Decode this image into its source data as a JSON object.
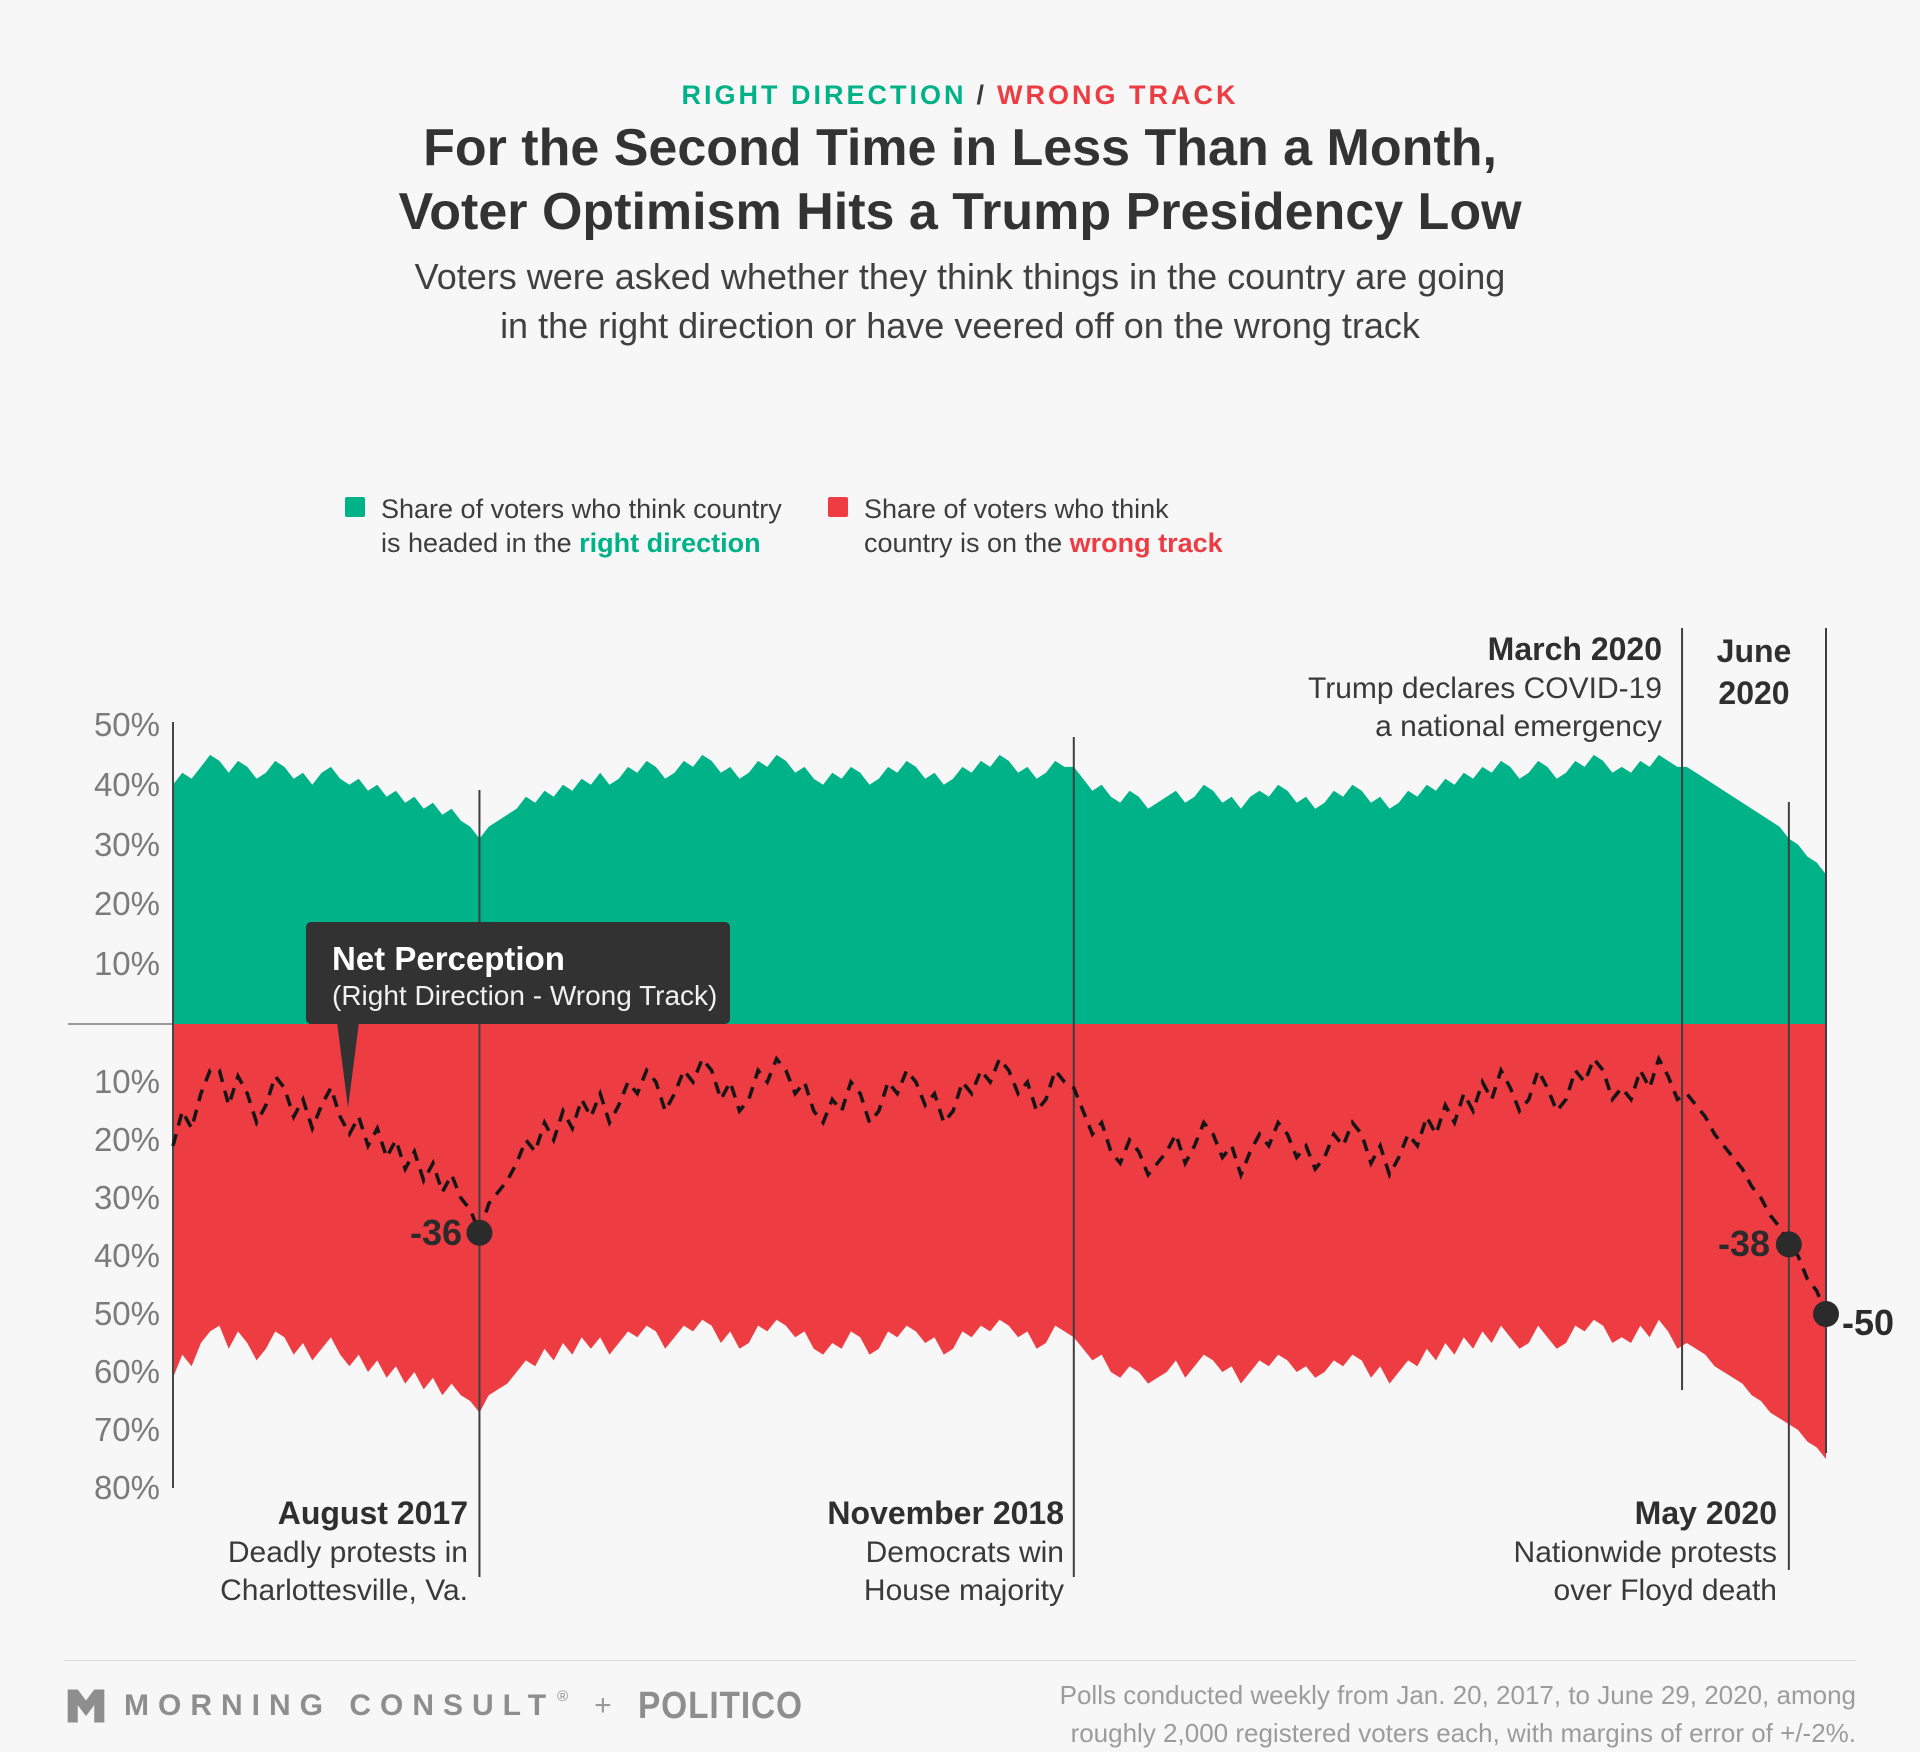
{
  "eyebrow": {
    "left": "RIGHT DIRECTION",
    "sep": "/",
    "right": "WRONG TRACK"
  },
  "title": {
    "line1": "For the Second Time in Less Than a Month,",
    "line2": "Voter Optimism Hits a Trump Presidency Low"
  },
  "subtitle": {
    "line1": "Voters were asked whether they think things in the country are going",
    "line2": "in the right direction or have veered off on the wrong track"
  },
  "legend": {
    "right": {
      "line1": "Share of voters who think country",
      "line2_prefix": "is headed in the ",
      "line2_bold": "right direction"
    },
    "wrong": {
      "line1": "Share of voters who think",
      "line2_prefix": "country is on the ",
      "line2_bold": "wrong track"
    }
  },
  "tooltip": {
    "title": "Net Perception",
    "subtitle": "(Right Direction - Wrong Track)"
  },
  "colors": {
    "green": "#00b287",
    "red": "#ed3c42",
    "dark": "#323232",
    "axis_gray": "#7b7b7b",
    "line_dark": "#3f3f3f",
    "dashed": "#161616"
  },
  "y_axis": {
    "top_ticks": [
      "50%",
      "40%",
      "30%",
      "20%",
      "10%"
    ],
    "bottom_ticks": [
      "10%",
      "20%",
      "30%",
      "40%",
      "50%",
      "60%",
      "70%",
      "80%"
    ]
  },
  "chart_data": {
    "type": "area",
    "title": "Right direction vs. wrong track, weekly",
    "x_unit": "week",
    "x_start_label": "Jan. 20, 2017",
    "x_end_label": "June 29, 2020",
    "ylim": [
      -80,
      50
    ],
    "grid": "event-lines-only",
    "series": [
      {
        "name": "right_direction",
        "color": "#00b287",
        "values": [
          40,
          42,
          41,
          43,
          45,
          44,
          42,
          44,
          43,
          41,
          42,
          44,
          43,
          41,
          42,
          40,
          42,
          43,
          41,
          40,
          41,
          39,
          40,
          38,
          39,
          37,
          38,
          36,
          37,
          35,
          36,
          34,
          33,
          31,
          33,
          34,
          35,
          36,
          38,
          37,
          39,
          38,
          40,
          39,
          41,
          40,
          42,
          40,
          41,
          43,
          42,
          44,
          43,
          41,
          42,
          44,
          43,
          45,
          44,
          42,
          43,
          41,
          42,
          44,
          43,
          45,
          44,
          42,
          43,
          41,
          40,
          42,
          41,
          43,
          42,
          40,
          41,
          43,
          42,
          44,
          43,
          41,
          42,
          40,
          41,
          43,
          42,
          44,
          43,
          45,
          44,
          42,
          43,
          41,
          42,
          44,
          43,
          43,
          41,
          39,
          40,
          38,
          37,
          39,
          38,
          36,
          37,
          38,
          39,
          37,
          38,
          40,
          39,
          37,
          38,
          36,
          38,
          39,
          38,
          40,
          39,
          37,
          38,
          36,
          37,
          39,
          38,
          40,
          39,
          37,
          38,
          36,
          37,
          39,
          38,
          40,
          39,
          41,
          40,
          42,
          41,
          43,
          42,
          44,
          43,
          41,
          42,
          44,
          43,
          41,
          42,
          44,
          43,
          45,
          44,
          42,
          43,
          42,
          44,
          43,
          45,
          44,
          43,
          43,
          42,
          41,
          40,
          39,
          38,
          37,
          36,
          35,
          34,
          33,
          31,
          30,
          28,
          27,
          25
        ]
      },
      {
        "name": "wrong_track",
        "color": "#ed3c42",
        "values": [
          61,
          57,
          59,
          55,
          53,
          52,
          56,
          53,
          55,
          58,
          56,
          53,
          54,
          57,
          55,
          58,
          56,
          54,
          57,
          59,
          57,
          60,
          58,
          61,
          59,
          62,
          60,
          63,
          61,
          64,
          62,
          64,
          65,
          67,
          64,
          63,
          62,
          60,
          58,
          59,
          56,
          58,
          55,
          57,
          54,
          56,
          54,
          57,
          55,
          53,
          54,
          52,
          53,
          56,
          54,
          52,
          53,
          51,
          52,
          55,
          53,
          56,
          55,
          52,
          53,
          51,
          52,
          54,
          53,
          56,
          57,
          55,
          56,
          53,
          54,
          57,
          56,
          53,
          54,
          52,
          53,
          55,
          54,
          57,
          56,
          53,
          54,
          52,
          53,
          51,
          52,
          54,
          53,
          56,
          55,
          52,
          53,
          54,
          56,
          58,
          57,
          60,
          61,
          59,
          60,
          62,
          61,
          60,
          58,
          61,
          59,
          57,
          58,
          60,
          59,
          62,
          60,
          58,
          59,
          57,
          58,
          60,
          59,
          61,
          60,
          58,
          59,
          57,
          58,
          61,
          59,
          62,
          60,
          58,
          59,
          56,
          58,
          55,
          57,
          54,
          56,
          53,
          55,
          52,
          54,
          56,
          55,
          52,
          54,
          56,
          55,
          52,
          53,
          51,
          52,
          55,
          54,
          55,
          52,
          54,
          51,
          53,
          56,
          55,
          56,
          57,
          59,
          60,
          61,
          62,
          64,
          65,
          67,
          68,
          69,
          70,
          72,
          73,
          75
        ]
      }
    ],
    "net_line": {
      "definition": "right_direction - wrong_track",
      "style": "dashed-black"
    },
    "point_labels": [
      {
        "week": 33,
        "net": -36,
        "label": "-36",
        "side": "left"
      },
      {
        "week": 174,
        "net": -38,
        "label": "-38",
        "side": "left"
      },
      {
        "week": 178,
        "net": -50,
        "label": "-50",
        "side": "right"
      }
    ],
    "events": [
      {
        "week": 33,
        "title": "August 2017",
        "desc1": "Deadly protests in",
        "desc2": "Charlottesville, Va.",
        "label_pos": "bottom"
      },
      {
        "week": 97,
        "title": "November 2018",
        "desc1": "Democrats win",
        "desc2": "House majority",
        "label_pos": "bottom"
      },
      {
        "week": 162.5,
        "title": "March 2020",
        "desc1": "Trump declares COVID-19",
        "desc2": "a national emergency",
        "label_pos": "top"
      },
      {
        "week": 174,
        "title": "May 2020",
        "desc1": "Nationwide protests",
        "desc2": "over Floyd death",
        "label_pos": "bottom"
      },
      {
        "week": 178,
        "title_line1": "June",
        "title_line2": "2020",
        "title": "June 2020",
        "desc1": "",
        "desc2": "",
        "label_pos": "top"
      }
    ]
  },
  "footer": {
    "brand": "MORNING CONSULT",
    "reg": "®",
    "plus": "+",
    "partner": "POLITICO",
    "source_line1": "Polls conducted weekly from Jan. 20, 2017, to June 29, 2020, among",
    "source_line2": "roughly 2,000 registered voters each, with margins of error of +/-2%."
  }
}
